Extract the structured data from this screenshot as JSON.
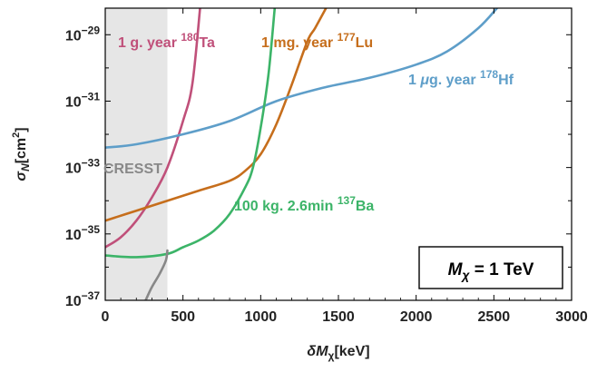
{
  "chart_data": {
    "type": "line",
    "xlabel": "δM",
    "xlabel_sub": "χ",
    "xlabel_unit": "[keV]",
    "ylabel": "σ",
    "ylabel_sub": "N",
    "ylabel_unit": "[cm",
    "ylabel_unit_exp": "2",
    "ylabel_unit_close": "]",
    "x_range": [
      0,
      3000
    ],
    "y_range_log10": [
      -37,
      -28.2
    ],
    "y_scale": "log",
    "x_ticks": [
      {
        "value": 0,
        "label": "0"
      },
      {
        "value": 500,
        "label": "500"
      },
      {
        "value": 1000,
        "label": "1000"
      },
      {
        "value": 1500,
        "label": "1500"
      },
      {
        "value": 2000,
        "label": "2000"
      },
      {
        "value": 2500,
        "label": "2500"
      },
      {
        "value": 3000,
        "label": "3000"
      }
    ],
    "y_ticks": [
      {
        "exp": -29,
        "base": "10",
        "sup": "−29"
      },
      {
        "exp": -31,
        "base": "10",
        "sup": "−31"
      },
      {
        "exp": -33,
        "base": "10",
        "sup": "−33"
      },
      {
        "exp": -35,
        "base": "10",
        "sup": "−35"
      },
      {
        "exp": -37,
        "base": "10",
        "sup": "−37"
      }
    ],
    "excluded_region": {
      "label": "CRESST",
      "x_range": [
        0,
        400
      ],
      "color": "#e6e6e6"
    },
    "inset_label": {
      "main": "M",
      "sub": "χ",
      "rest": " = 1 TeV"
    },
    "series": [
      {
        "name": "1 g. year 180Ta",
        "label_parts": {
          "prefix": "1 g. year ",
          "sup": "180",
          "suffix": "Ta"
        },
        "color": "#c0507a",
        "points": [
          [
            0,
            -35.4
          ],
          [
            100,
            -35.1
          ],
          [
            200,
            -34.6
          ],
          [
            300,
            -33.9
          ],
          [
            400,
            -33.0
          ],
          [
            500,
            -31.6
          ],
          [
            560,
            -30.5
          ],
          [
            610,
            -28.2
          ]
        ]
      },
      {
        "name": "1 mg. year 177Lu",
        "label_parts": {
          "prefix": "1 mg. year ",
          "sup": "177",
          "suffix": "Lu"
        },
        "color": "#c66e1c",
        "points": [
          [
            0,
            -34.6
          ],
          [
            200,
            -34.3
          ],
          [
            400,
            -34.0
          ],
          [
            600,
            -33.7
          ],
          [
            800,
            -33.4
          ],
          [
            900,
            -33.1
          ],
          [
            1000,
            -32.6
          ],
          [
            1100,
            -31.7
          ],
          [
            1200,
            -30.5
          ],
          [
            1300,
            -29.2
          ],
          [
            1350,
            -28.8
          ],
          [
            1420,
            -28.2
          ]
        ]
      },
      {
        "name": "1 μg. year 178Hf",
        "label_parts": {
          "prefix": "1 ",
          "mu": "μ",
          "after_mu": "g. year ",
          "sup": "178",
          "suffix": "Hf"
        },
        "color": "#5e9ec9",
        "points": [
          [
            0,
            -32.4
          ],
          [
            200,
            -32.3
          ],
          [
            500,
            -32.0
          ],
          [
            800,
            -31.6
          ],
          [
            1100,
            -31.0
          ],
          [
            1400,
            -30.6
          ],
          [
            1700,
            -30.3
          ],
          [
            2000,
            -29.9
          ],
          [
            2200,
            -29.5
          ],
          [
            2400,
            -28.8
          ],
          [
            2520,
            -28.2
          ]
        ]
      },
      {
        "name": "100 kg. 2.6min 137Ba",
        "label_parts": {
          "prefix": "100 kg. 2.6min ",
          "sup": "137",
          "suffix": "Ba"
        },
        "color": "#3cb468",
        "points": [
          [
            0,
            -35.65
          ],
          [
            200,
            -35.7
          ],
          [
            400,
            -35.6
          ],
          [
            500,
            -35.4
          ],
          [
            600,
            -35.2
          ],
          [
            700,
            -34.9
          ],
          [
            800,
            -34.4
          ],
          [
            900,
            -33.6
          ],
          [
            950,
            -33.0
          ],
          [
            1000,
            -31.8
          ],
          [
            1050,
            -30.2
          ],
          [
            1090,
            -28.2
          ]
        ]
      },
      {
        "name": "CRESST",
        "color": "#888888",
        "points": [
          [
            260,
            -37.0
          ],
          [
            300,
            -36.6
          ],
          [
            350,
            -36.2
          ],
          [
            390,
            -35.8
          ],
          [
            400,
            -35.5
          ]
        ]
      }
    ]
  }
}
